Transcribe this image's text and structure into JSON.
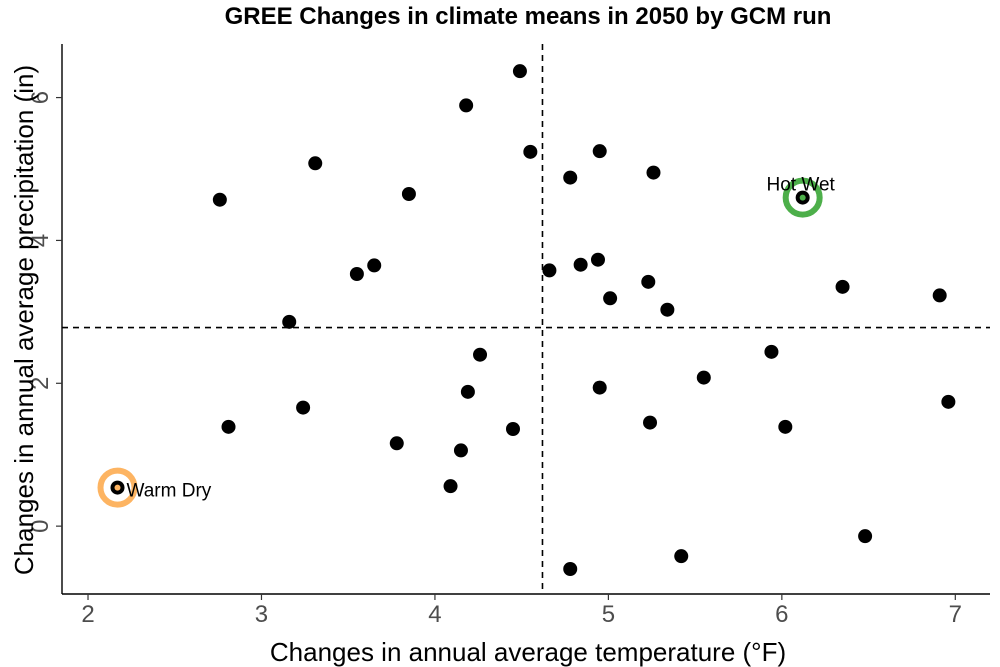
{
  "chart_data": {
    "type": "scatter",
    "title": "GREE Changes in climate means in 2050 by GCM run",
    "xlabel": "Changes in annual average temperature (°F)",
    "ylabel": "Changes in annual average precipitation (in)",
    "xlim": [
      1.85,
      7.2
    ],
    "ylim": [
      -0.95,
      6.75
    ],
    "xticks": [
      2,
      3,
      4,
      5,
      6,
      7
    ],
    "yticks": [
      0,
      2,
      4,
      6
    ],
    "grid": false,
    "reference_lines": {
      "x": 4.62,
      "y": 2.78
    },
    "points": [
      {
        "x": 2.17,
        "y": 0.54
      },
      {
        "x": 2.76,
        "y": 4.57
      },
      {
        "x": 2.81,
        "y": 1.39
      },
      {
        "x": 3.16,
        "y": 2.86
      },
      {
        "x": 3.24,
        "y": 1.66
      },
      {
        "x": 3.31,
        "y": 5.08
      },
      {
        "x": 3.55,
        "y": 3.53
      },
      {
        "x": 3.65,
        "y": 3.65
      },
      {
        "x": 3.78,
        "y": 1.16
      },
      {
        "x": 3.85,
        "y": 4.65
      },
      {
        "x": 4.09,
        "y": 0.56
      },
      {
        "x": 4.15,
        "y": 1.06
      },
      {
        "x": 4.18,
        "y": 5.89
      },
      {
        "x": 4.19,
        "y": 1.88
      },
      {
        "x": 4.26,
        "y": 2.4
      },
      {
        "x": 4.45,
        "y": 1.36
      },
      {
        "x": 4.49,
        "y": 6.37
      },
      {
        "x": 4.55,
        "y": 5.24
      },
      {
        "x": 4.66,
        "y": 3.58
      },
      {
        "x": 4.78,
        "y": 4.88
      },
      {
        "x": 4.78,
        "y": -0.6
      },
      {
        "x": 4.84,
        "y": 3.66
      },
      {
        "x": 4.94,
        "y": 3.73
      },
      {
        "x": 4.95,
        "y": 5.25
      },
      {
        "x": 4.95,
        "y": 1.94
      },
      {
        "x": 5.01,
        "y": 3.19
      },
      {
        "x": 5.23,
        "y": 3.42
      },
      {
        "x": 5.24,
        "y": 1.45
      },
      {
        "x": 5.26,
        "y": 4.95
      },
      {
        "x": 5.34,
        "y": 3.03
      },
      {
        "x": 5.42,
        "y": -0.42
      },
      {
        "x": 5.55,
        "y": 2.08
      },
      {
        "x": 5.94,
        "y": 2.44
      },
      {
        "x": 6.02,
        "y": 1.39
      },
      {
        "x": 6.12,
        "y": 4.6
      },
      {
        "x": 6.35,
        "y": 3.35
      },
      {
        "x": 6.48,
        "y": -0.14
      },
      {
        "x": 6.91,
        "y": 3.23
      },
      {
        "x": 6.96,
        "y": 1.74
      }
    ],
    "highlights": [
      {
        "label": "Hot Wet",
        "x": 6.12,
        "y": 4.6,
        "ring_color": "#4daf4a"
      },
      {
        "label": "Warm Dry",
        "x": 2.17,
        "y": 0.54,
        "ring_color": "#fdb462"
      }
    ]
  }
}
